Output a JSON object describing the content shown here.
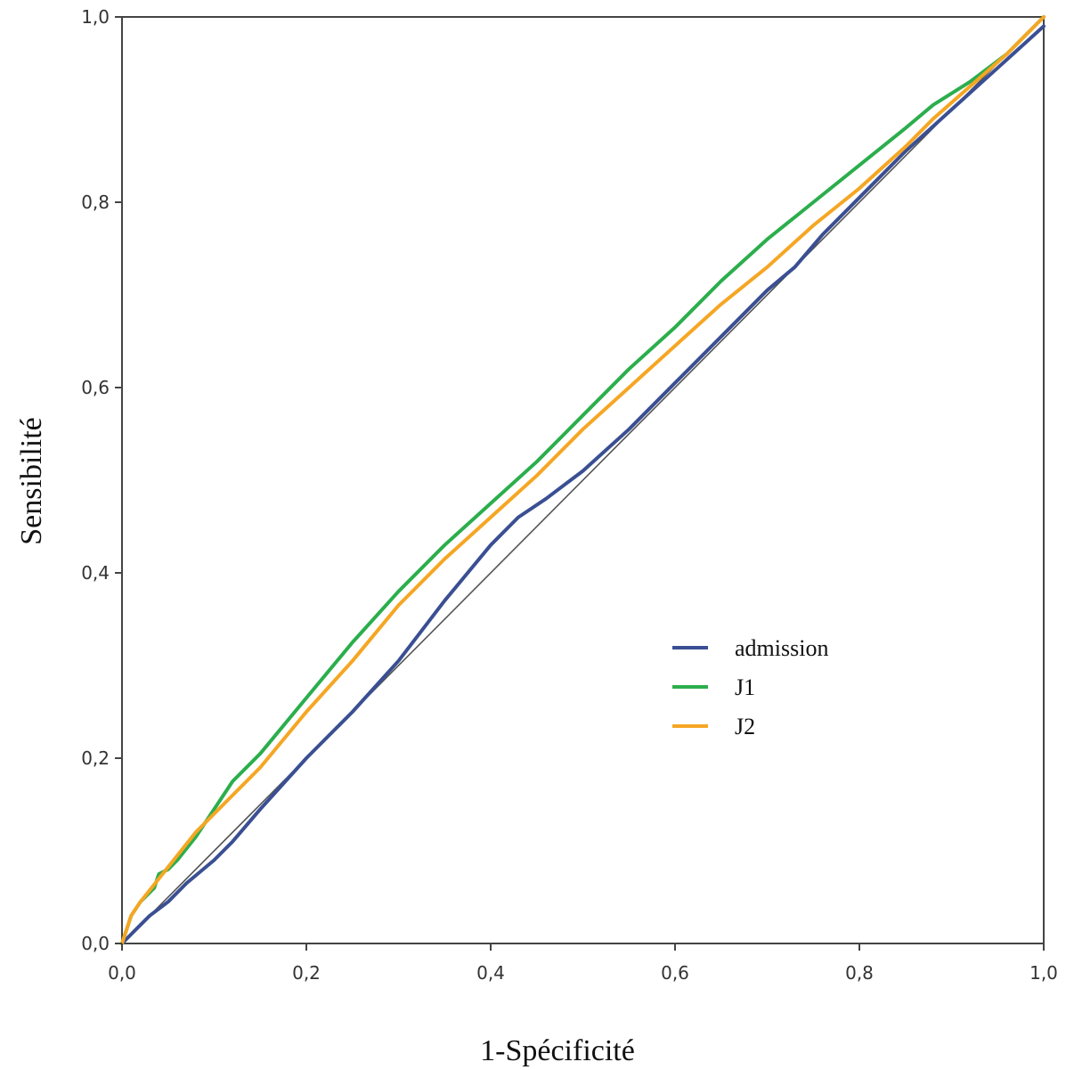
{
  "chart_data": {
    "type": "line",
    "xlabel": "1-Spécificité",
    "ylabel": "Sensibilité",
    "xlim": [
      0,
      1
    ],
    "ylim": [
      0,
      1
    ],
    "x_ticks": [
      "0,0",
      "0,2",
      "0,4",
      "0,6",
      "0,8",
      "1,0"
    ],
    "y_ticks": [
      "0,0",
      "0,2",
      "0,4",
      "0,6",
      "0,8",
      "1,0"
    ],
    "grid": false,
    "legend_position": "center-right",
    "reference_line": {
      "x": [
        0,
        1
      ],
      "y": [
        0,
        1
      ],
      "color": "#555555"
    },
    "series": [
      {
        "name": "admission",
        "color": "#3A4F93",
        "x": [
          0,
          0.01,
          0.02,
          0.03,
          0.05,
          0.07,
          0.1,
          0.12,
          0.15,
          0.2,
          0.25,
          0.3,
          0.35,
          0.4,
          0.43,
          0.46,
          0.5,
          0.55,
          0.6,
          0.65,
          0.7,
          0.73,
          0.76,
          0.8,
          0.85,
          0.9,
          0.95,
          1.0
        ],
        "y": [
          0,
          0.01,
          0.02,
          0.03,
          0.045,
          0.065,
          0.09,
          0.11,
          0.145,
          0.2,
          0.25,
          0.305,
          0.37,
          0.43,
          0.46,
          0.48,
          0.51,
          0.555,
          0.605,
          0.655,
          0.705,
          0.73,
          0.765,
          0.805,
          0.855,
          0.9,
          0.945,
          0.99
        ]
      },
      {
        "name": "J1",
        "color": "#2BAE4C",
        "x": [
          0,
          0.01,
          0.02,
          0.035,
          0.04,
          0.05,
          0.06,
          0.08,
          0.1,
          0.12,
          0.15,
          0.2,
          0.25,
          0.3,
          0.35,
          0.4,
          0.45,
          0.5,
          0.55,
          0.6,
          0.65,
          0.7,
          0.75,
          0.8,
          0.85,
          0.88,
          0.92,
          0.96,
          1.0
        ],
        "y": [
          0,
          0.03,
          0.045,
          0.06,
          0.075,
          0.08,
          0.09,
          0.115,
          0.145,
          0.175,
          0.205,
          0.265,
          0.325,
          0.38,
          0.43,
          0.475,
          0.52,
          0.57,
          0.62,
          0.665,
          0.715,
          0.76,
          0.8,
          0.84,
          0.88,
          0.905,
          0.93,
          0.96,
          1.0
        ]
      },
      {
        "name": "J2",
        "color": "#F5A623",
        "x": [
          0,
          0.01,
          0.02,
          0.04,
          0.06,
          0.08,
          0.1,
          0.12,
          0.15,
          0.2,
          0.25,
          0.3,
          0.35,
          0.4,
          0.45,
          0.5,
          0.55,
          0.6,
          0.65,
          0.7,
          0.75,
          0.8,
          0.85,
          0.88,
          0.92,
          0.96,
          1.0
        ],
        "y": [
          0,
          0.03,
          0.045,
          0.07,
          0.095,
          0.12,
          0.14,
          0.16,
          0.19,
          0.25,
          0.305,
          0.365,
          0.415,
          0.46,
          0.505,
          0.555,
          0.6,
          0.645,
          0.69,
          0.73,
          0.775,
          0.815,
          0.86,
          0.89,
          0.925,
          0.96,
          1.0
        ]
      }
    ]
  }
}
